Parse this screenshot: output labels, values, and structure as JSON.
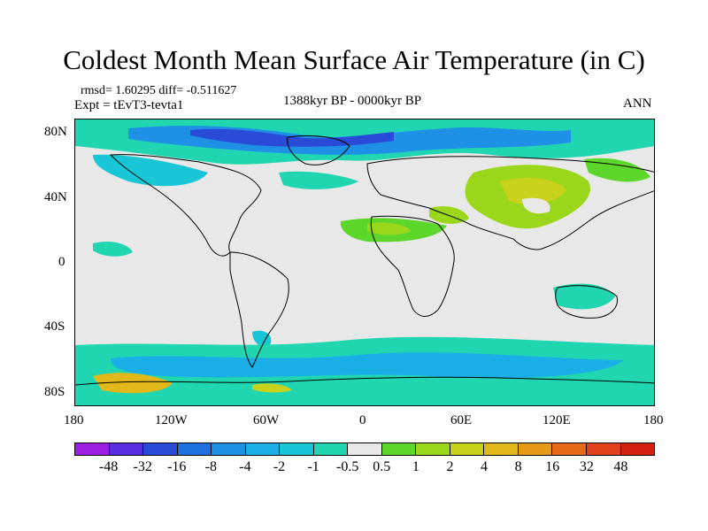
{
  "title": "Coldest Month Mean Surface Air Temperature (in C)",
  "stats": "rmsd= 1.60295 diff= -0.511627",
  "experiment": "Expt = tEvT3-tevta1",
  "period": "1388kyr BP - 0000kyr BP",
  "season": "ANN",
  "lat_labels": [
    "80N",
    "40N",
    "0",
    "40S",
    "80S"
  ],
  "lon_labels": [
    "180",
    "120W",
    "60W",
    "0",
    "60E",
    "120E",
    "180"
  ],
  "colorbar": {
    "labels": [
      "-48",
      "-32",
      "-16",
      "-8",
      "-4",
      "-2",
      "-1",
      "-0.5",
      "0.5",
      "1",
      "2",
      "4",
      "8",
      "16",
      "32",
      "48"
    ],
    "colors": [
      "#9b1fe0",
      "#5a2de0",
      "#2a4bd7",
      "#1e6fe0",
      "#1e90e6",
      "#19aee6",
      "#19c6d6",
      "#1fd6b0",
      "#e8e8e8",
      "#5cd62a",
      "#9ad61a",
      "#c8d21a",
      "#e0b81a",
      "#e69a1a",
      "#e66a1a",
      "#e0401a",
      "#d4200f"
    ]
  }
}
